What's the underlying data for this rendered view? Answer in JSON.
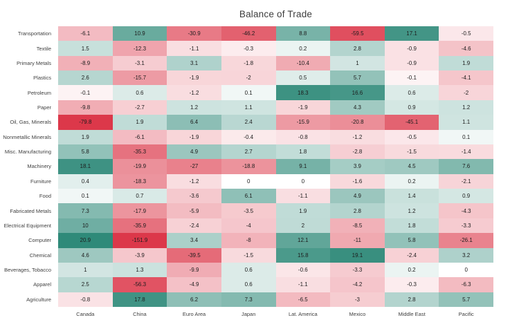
{
  "chart_data": {
    "type": "heatmap",
    "title": "Balance of Trade",
    "legend": "off",
    "grid": "off",
    "columns": [
      "Canada",
      "China",
      "Euro Area",
      "Japan",
      "Lat. America",
      "Mexico",
      "Middle East",
      "Pacific"
    ],
    "rows": [
      "Transportation",
      "Textile",
      "Primary Metals",
      "Plastics",
      "Petroleum",
      "Paper",
      "Oil, Gas, Minerals",
      "Nonmetallic Minerals",
      "Misc. Manufacturing",
      "Machinery",
      "Furniture",
      "Food",
      "Fabricated Metals",
      "Electrical Equipment",
      "Computer",
      "Chemical",
      "Beverages, Tobacco",
      "Apparel",
      "Agriculture"
    ],
    "values": [
      [
        -6.1,
        10.9,
        -30.9,
        -46.2,
        8.8,
        -59.5,
        17.1,
        -0.5
      ],
      [
        1.5,
        -12.3,
        -1.1,
        -0.3,
        0.2,
        2.8,
        -0.9,
        -4.6
      ],
      [
        -8.9,
        -3.1,
        3.1,
        -1.8,
        -10.4,
        1,
        -0.9,
        1.9
      ],
      [
        2.6,
        -15.7,
        -1.9,
        -2,
        0.5,
        5.7,
        -0.1,
        -4.1
      ],
      [
        -0.1,
        0.6,
        -1.2,
        0.1,
        18.3,
        16.6,
        0.6,
        -2
      ],
      [
        -9.8,
        -2.7,
        1.2,
        1.1,
        -1.9,
        4.3,
        0.9,
        1.2
      ],
      [
        -79.8,
        1.9,
        6.4,
        2.4,
        -15.9,
        -20.8,
        -45.1,
        1.1
      ],
      [
        1.9,
        -6.1,
        -1.9,
        -0.4,
        -0.8,
        -1.2,
        -0.5,
        0.1
      ],
      [
        5.8,
        -35.3,
        4.9,
        2.7,
        1.8,
        -2.8,
        -1.5,
        -1.4
      ],
      [
        18.1,
        -19.9,
        -27,
        -18.8,
        9.1,
        3.9,
        4.5,
        7.6
      ],
      [
        0.4,
        -18.3,
        -1.2,
        0,
        0,
        -1.6,
        0.2,
        -2.1
      ],
      [
        0.1,
        0.7,
        -3.6,
        6.1,
        -1.1,
        4.9,
        1.4,
        0.9
      ],
      [
        7.3,
        -17.9,
        -5.9,
        -3.5,
        1.9,
        2.8,
        1.2,
        -4.3
      ],
      [
        10,
        -35.9,
        -2.4,
        -4,
        2,
        -8.5,
        1.8,
        -3.3
      ],
      [
        20.9,
        -151.9,
        3.4,
        -8,
        12.1,
        -11,
        5.8,
        -26.1
      ],
      [
        4.6,
        -3.9,
        -39.5,
        -1.5,
        15.8,
        19.1,
        -2.4,
        3.2
      ],
      [
        1,
        1.3,
        -9.9,
        0.6,
        -0.6,
        -3.3,
        0.2,
        0
      ],
      [
        2.5,
        -56.3,
        -4.9,
        0.6,
        -1.1,
        -4.2,
        -0.3,
        -6.3
      ],
      [
        -0.8,
        17.8,
        6.2,
        7.3,
        -6.5,
        -3,
        2.8,
        5.7
      ]
    ],
    "color_scale": {
      "negative": {
        "color": "#dc384a",
        "max": 80,
        "exp": 0.42
      },
      "positive": {
        "color": "#2f8a79",
        "max": 21,
        "exp": 0.5
      },
      "neutral": "#ffffff"
    },
    "cell_text_color": "#1d1d1d",
    "label_text_color": "#3f3f3f"
  }
}
